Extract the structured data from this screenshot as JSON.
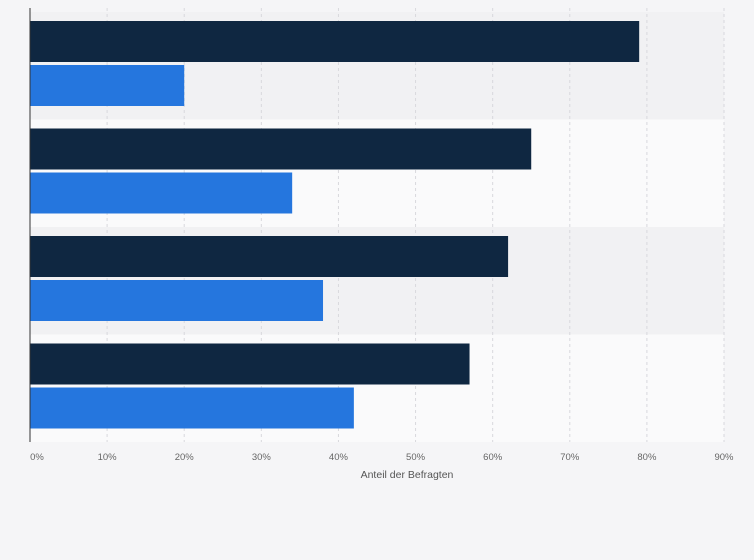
{
  "chart_data": {
    "type": "bar",
    "orientation": "horizontal",
    "categories": [
      "",
      "",
      "",
      ""
    ],
    "series": [
      {
        "values": [
          79,
          65,
          62,
          57
        ],
        "color": "#0f2741"
      },
      {
        "values": [
          20,
          34,
          38,
          42
        ],
        "color": "#2576de"
      }
    ],
    "xlabel": "Anteil der Befragten",
    "ylabel": "",
    "xlim": [
      0,
      90
    ],
    "x_ticks": [
      0,
      10,
      20,
      30,
      40,
      50,
      60,
      70,
      80,
      90
    ],
    "x_tick_labels": [
      "0%",
      "10%",
      "20%",
      "30%",
      "40%",
      "50%",
      "60%",
      "70%",
      "80%",
      "90%"
    ],
    "grid": true,
    "legend": "none"
  },
  "colors": {
    "background": "#f5f5f7",
    "band_dark": "#f1f1f3",
    "band_light": "#fafafb",
    "grid": "#d8d8dd",
    "axis": "#333333"
  }
}
